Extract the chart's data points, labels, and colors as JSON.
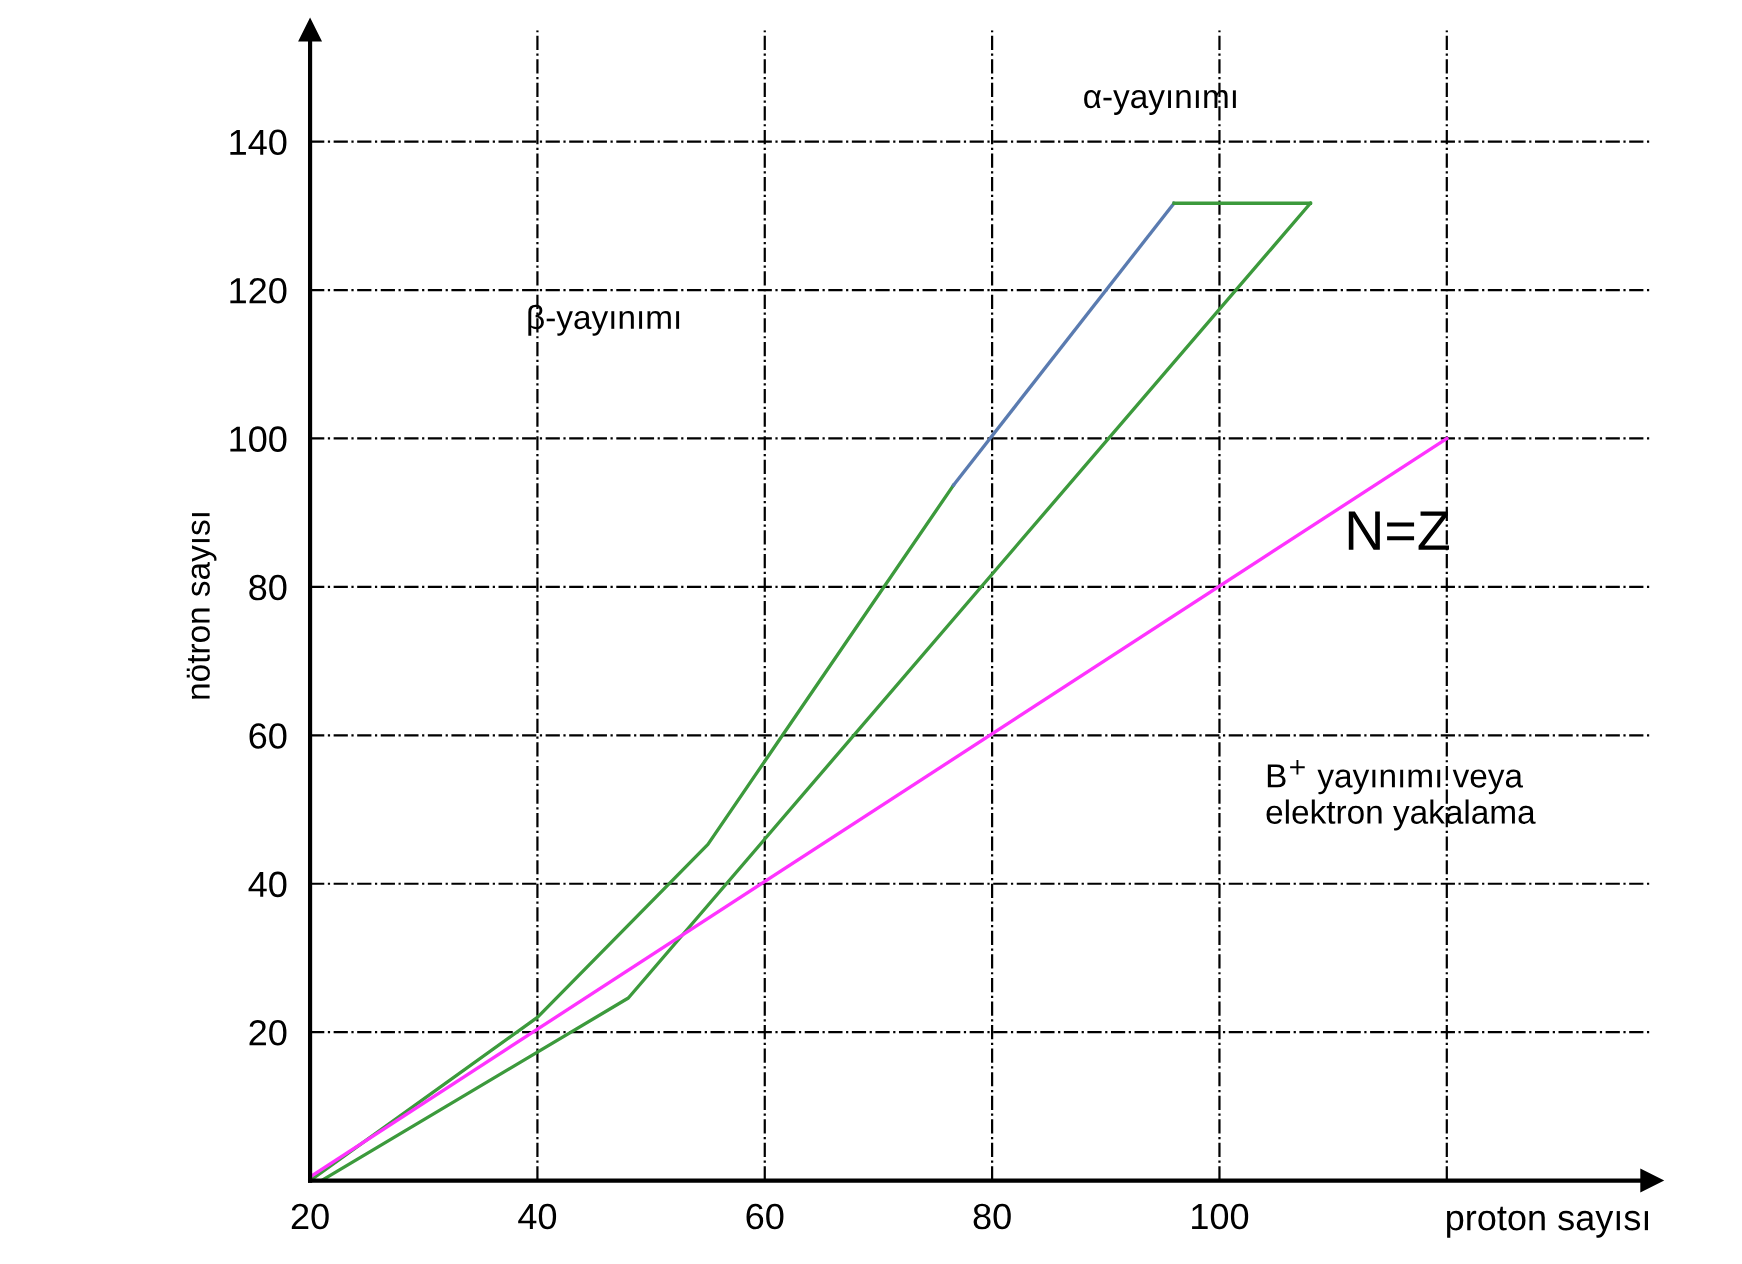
{
  "chart_data": {
    "type": "line",
    "xlabel": "proton sayısı",
    "ylabel": "nötron sayısı",
    "series": [
      {
        "color": "#3c9a3c",
        "x": [
          20,
          40,
          55,
          76.6
        ],
        "values": [
          0,
          22,
          45.3,
          93.7
        ]
      },
      {
        "color": "#5a7bb0",
        "x": [
          76.6,
          96
        ],
        "values": [
          93.7,
          131.7
        ]
      },
      {
        "color": "#3c9a3c",
        "x": [
          96,
          108
        ],
        "values": [
          131.7,
          131.7
        ]
      },
      {
        "color": "#3c9a3c",
        "x": [
          21,
          48,
          108
        ],
        "values": [
          0,
          24.6,
          131.7
        ]
      },
      {
        "color": "#ff33ff",
        "x": [
          20,
          120
        ],
        "values": [
          0.5,
          100
        ]
      }
    ],
    "annotations": [
      "α-yayınımı",
      "β-yayınımı",
      "N=Z",
      "B$^{+}$ yayınımı veya\nelektron yakalama"
    ],
    "xlim": [
      20,
      138
    ],
    "ylim": [
      0,
      155
    ],
    "xticks": [
      20,
      40,
      60,
      80,
      100,
      {
        "value": 120,
        "label": null
      }
    ],
    "yticks": [
      20,
      40,
      60,
      80,
      100,
      120,
      140
    ],
    "grid": true,
    "marker": "none",
    "line_style": "solid"
  }
}
